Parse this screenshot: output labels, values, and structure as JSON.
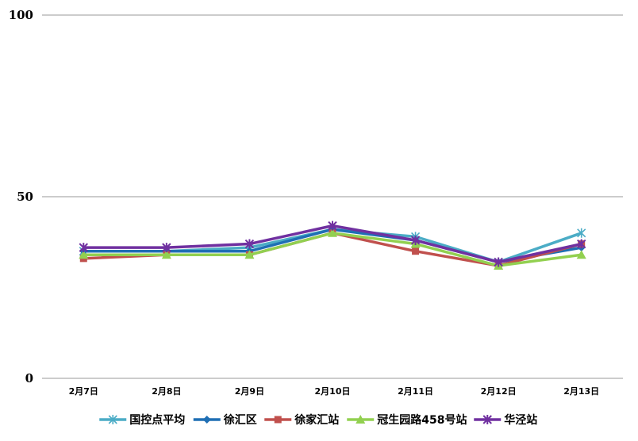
{
  "chart_data": {
    "type": "line",
    "title": "",
    "xlabel": "",
    "ylabel": "",
    "ylim": [
      0,
      100
    ],
    "yticks": [
      "0",
      "50",
      "100"
    ],
    "grid": "horizontal",
    "legend_position": "bottom",
    "categories": [
      "2月7日",
      "2月8日",
      "2月9日",
      "2月10日",
      "2月11日",
      "2月12日",
      "2月13日"
    ],
    "series": [
      {
        "name": "国控点平均",
        "color": "#4BACC6",
        "marker": "x-star",
        "values": [
          35,
          35,
          36,
          41,
          39,
          32,
          40
        ]
      },
      {
        "name": "徐汇区",
        "color": "#1F6FB4",
        "marker": "diamond",
        "values": [
          35,
          35,
          35,
          41,
          38,
          32,
          36
        ]
      },
      {
        "name": "徐家汇站",
        "color": "#C0504D",
        "marker": "square",
        "values": [
          33,
          34,
          34,
          40,
          35,
          31,
          37
        ]
      },
      {
        "name": "冠生园路458号站",
        "color": "#92D050",
        "marker": "triangle",
        "values": [
          34,
          34,
          34,
          40,
          37,
          31,
          34
        ]
      },
      {
        "name": "华泾站",
        "color": "#7030A0",
        "marker": "asterisk",
        "values": [
          36,
          36,
          37,
          42,
          38,
          32,
          37
        ]
      }
    ]
  }
}
